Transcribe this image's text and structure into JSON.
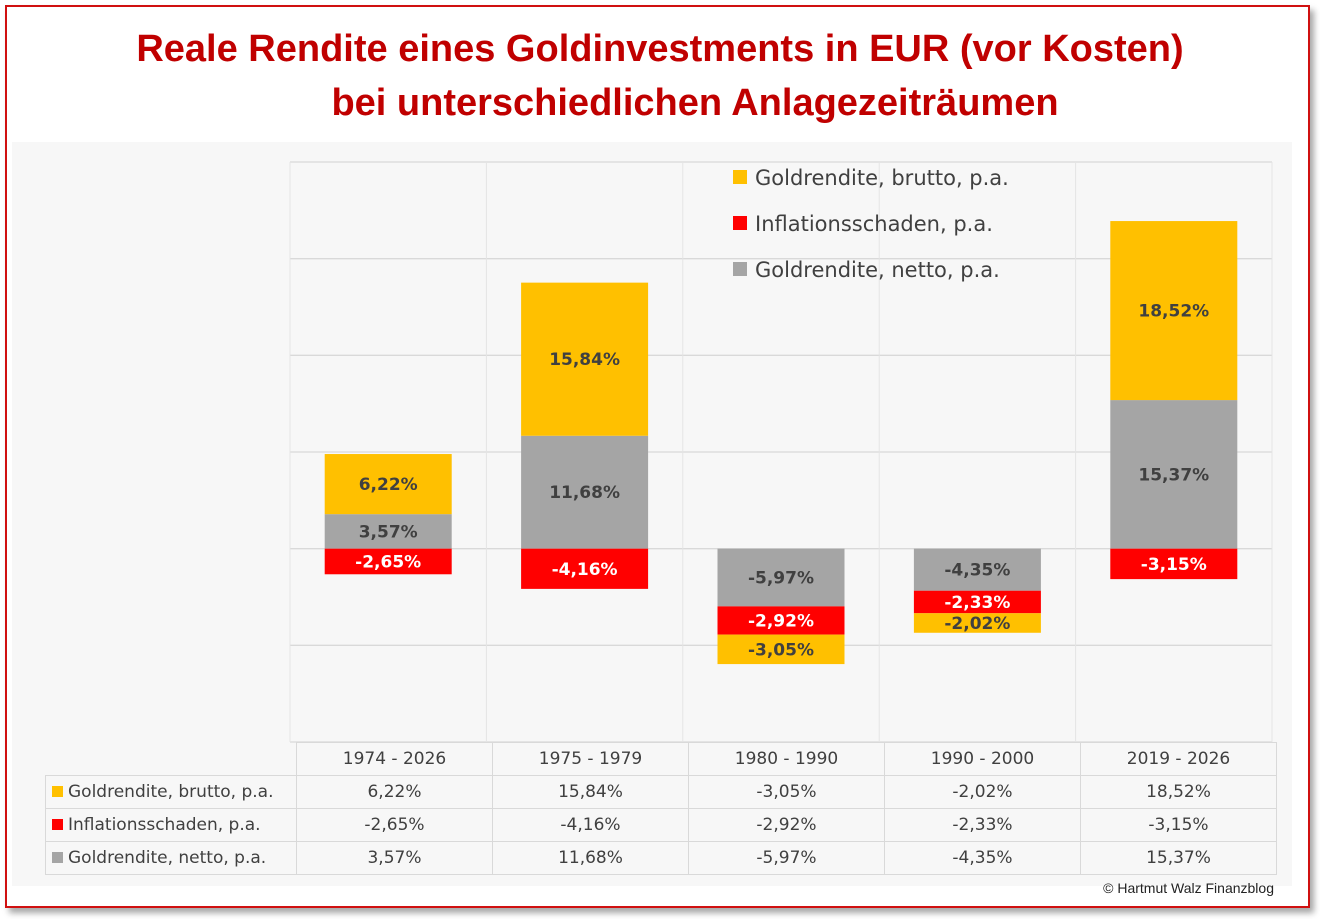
{
  "title_lines": [
    "Reale Rendite eines Goldinvestments in EUR (vor Kosten)",
    "bei unterschiedlichen Anlagezeiträumen"
  ],
  "copyright": "© Hartmut  Walz Finanzblog",
  "chart_data": {
    "type": "bar",
    "stacked": true,
    "title": "Reale Rendite eines Goldinvestments in EUR (vor Kosten) bei unterschiedlichen Anlagezeiträumen",
    "categories": [
      "1974 - 2026",
      "1975 - 1979",
      "1980 - 1990",
      "1990 - 2000",
      "2019 - 2026"
    ],
    "ylim": [
      -20,
      40
    ],
    "grid": true,
    "legend_placement": "top-center",
    "series": [
      {
        "name": "Goldrendite, brutto, p.a.",
        "color": "#ffc000",
        "values": [
          6.22,
          15.84,
          -3.05,
          -2.02,
          18.52
        ],
        "labels": [
          "6,22%",
          "15,84%",
          "-3,05%",
          "-2,02%",
          "18,52%"
        ]
      },
      {
        "name": "Inflationsschaden, p.a.",
        "color": "#ff0000",
        "values": [
          -2.65,
          -4.16,
          -2.92,
          -2.33,
          -3.15
        ],
        "labels": [
          "-2,65%",
          "-4,16%",
          "-2,92%",
          "-2,33%",
          "-3,15%"
        ]
      },
      {
        "name": "Goldrendite, netto, p.a.",
        "color": "#a5a5a5",
        "values": [
          3.57,
          11.68,
          -5.97,
          -4.35,
          15.37
        ],
        "labels": [
          "3,57%",
          "11,68%",
          "-5,97%",
          "-4,35%",
          "15,37%"
        ]
      }
    ]
  }
}
